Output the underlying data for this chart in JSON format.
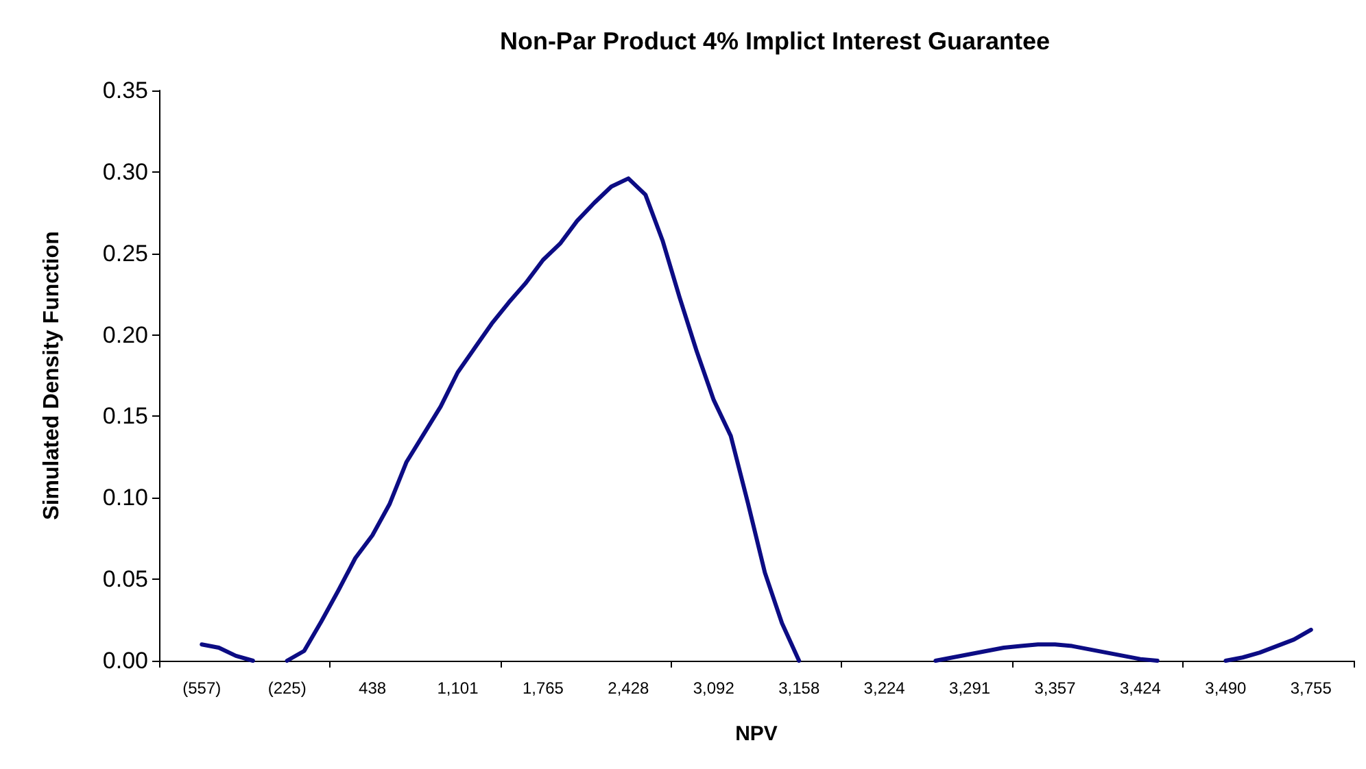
{
  "chart_data": {
    "type": "line",
    "title": "Non-Par Product 4% Implict Interest Guarantee",
    "xlabel": "NPV",
    "ylabel": "Simulated Density Function",
    "categories": [
      null,
      null,
      "(557)",
      null,
      null,
      null,
      null,
      "(225)",
      null,
      null,
      null,
      null,
      "438",
      null,
      null,
      null,
      null,
      "1,101",
      null,
      null,
      null,
      null,
      "1,765",
      null,
      null,
      null,
      null,
      "2,428",
      null,
      null,
      null,
      null,
      "3,092",
      null,
      null,
      null,
      null,
      "3,158",
      null,
      null,
      null,
      null,
      "3,224",
      null,
      null,
      null,
      null,
      "3,291",
      null,
      null,
      null,
      null,
      "3,357",
      null,
      null,
      null,
      null,
      "3,424",
      null,
      null,
      null,
      null,
      "3,490",
      null,
      null,
      null,
      null,
      "3,755",
      null,
      null
    ],
    "series": [
      {
        "color": "#0c0c84",
        "values": [
          null,
          null,
          0.01,
          0.008,
          0.003,
          0,
          null,
          0,
          0.006,
          0.024,
          0.043,
          0.063,
          0.077,
          0.096,
          0.122,
          0.139,
          0.156,
          0.177,
          0.192,
          0.207,
          0.22,
          0.232,
          0.246,
          0.256,
          0.27,
          0.281,
          0.291,
          0.296,
          0.286,
          0.258,
          0.223,
          0.19,
          0.16,
          0.138,
          0.097,
          0.054,
          0.023,
          0,
          null,
          null,
          null,
          null,
          null,
          null,
          null,
          0,
          0.002,
          0.004,
          0.006,
          0.008,
          0.009,
          0.01,
          0.01,
          0.009,
          0.007,
          0.005,
          0.003,
          0.001,
          0,
          null,
          null,
          null,
          0,
          0.002,
          0.005,
          0.009,
          0.013,
          0.019,
          null,
          null
        ]
      }
    ],
    "ylim": [
      0,
      0.35
    ],
    "yticks": [
      {
        "value": 0,
        "label": "0.00"
      },
      {
        "value": 0.05,
        "label": "0.05"
      },
      {
        "value": 0.1,
        "label": "0.10"
      },
      {
        "value": 0.15,
        "label": "0.15"
      },
      {
        "value": 0.2,
        "label": "0.20"
      },
      {
        "value": 0.25,
        "label": "0.25"
      },
      {
        "value": 0.3,
        "label": "0.30"
      },
      {
        "value": 0.35,
        "label": "0.35"
      }
    ],
    "grid": false,
    "marker": "none",
    "line_style": "solid"
  }
}
